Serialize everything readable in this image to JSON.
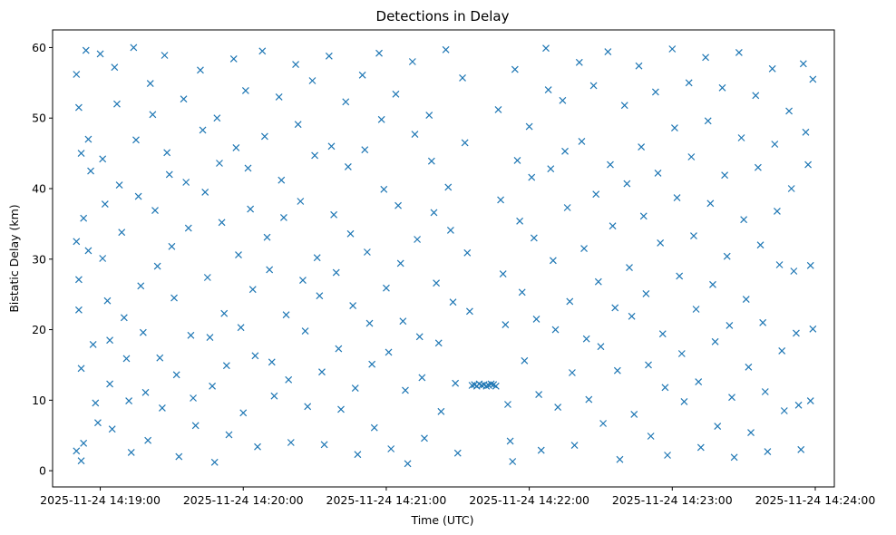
{
  "chart_data": {
    "type": "scatter",
    "title": "Detections in Delay",
    "xlabel": "Time (UTC)",
    "ylabel": "Bistatic Delay (km)",
    "marker": "x",
    "color": "#1f77b4",
    "grid": false,
    "x_type": "datetime",
    "xlim": [
      "2025-11-24 14:18:40",
      "2025-11-24 14:24:08"
    ],
    "ylim": [
      -2.3,
      62.5
    ],
    "x_ticks": [
      "2025-11-24 14:19:00",
      "2025-11-24 14:20:00",
      "2025-11-24 14:21:00",
      "2025-11-24 14:22:00",
      "2025-11-24 14:23:00",
      "2025-11-24 14:24:00"
    ],
    "y_ticks": [
      0,
      10,
      20,
      30,
      40,
      50,
      60
    ],
    "points": [
      [
        "14:18:50",
        56.2
      ],
      [
        "14:18:51",
        51.5
      ],
      [
        "14:18:52",
        45.0
      ],
      [
        "14:18:53",
        35.8
      ],
      [
        "14:18:50",
        32.5
      ],
      [
        "14:18:51",
        27.1
      ],
      [
        "14:18:51",
        22.8
      ],
      [
        "14:18:52",
        14.5
      ],
      [
        "14:18:50",
        2.8
      ],
      [
        "14:18:52",
        1.4
      ],
      [
        "14:18:53",
        3.9
      ],
      [
        "14:18:54",
        59.6
      ],
      [
        "14:18:55",
        47.0
      ],
      [
        "14:18:56",
        42.5
      ],
      [
        "14:18:55",
        31.2
      ],
      [
        "14:18:57",
        17.9
      ],
      [
        "14:18:58",
        9.6
      ],
      [
        "14:18:59",
        6.8
      ],
      [
        "14:19:00",
        59.1
      ],
      [
        "14:19:01",
        44.2
      ],
      [
        "14:19:02",
        37.8
      ],
      [
        "14:19:01",
        30.1
      ],
      [
        "14:19:03",
        24.1
      ],
      [
        "14:19:04",
        18.5
      ],
      [
        "14:19:04",
        12.3
      ],
      [
        "14:19:05",
        5.9
      ],
      [
        "14:19:06",
        57.2
      ],
      [
        "14:19:07",
        52.0
      ],
      [
        "14:19:08",
        40.5
      ],
      [
        "14:19:09",
        33.8
      ],
      [
        "14:19:10",
        21.7
      ],
      [
        "14:19:11",
        15.9
      ],
      [
        "14:19:12",
        9.9
      ],
      [
        "14:19:13",
        2.6
      ],
      [
        "14:19:14",
        60.0
      ],
      [
        "14:19:15",
        46.9
      ],
      [
        "14:19:16",
        38.9
      ],
      [
        "14:19:17",
        26.2
      ],
      [
        "14:19:18",
        19.6
      ],
      [
        "14:19:19",
        11.1
      ],
      [
        "14:19:20",
        4.3
      ],
      [
        "14:19:21",
        54.9
      ],
      [
        "14:19:22",
        50.5
      ],
      [
        "14:19:23",
        36.9
      ],
      [
        "14:19:24",
        29.0
      ],
      [
        "14:19:25",
        16.0
      ],
      [
        "14:19:26",
        8.9
      ],
      [
        "14:19:27",
        58.9
      ],
      [
        "14:19:28",
        45.1
      ],
      [
        "14:19:29",
        42.0
      ],
      [
        "14:19:30",
        31.8
      ],
      [
        "14:19:31",
        24.5
      ],
      [
        "14:19:32",
        13.6
      ],
      [
        "14:19:33",
        2.0
      ],
      [
        "14:19:35",
        52.7
      ],
      [
        "14:19:36",
        40.9
      ],
      [
        "14:19:37",
        34.4
      ],
      [
        "14:19:38",
        19.2
      ],
      [
        "14:19:39",
        10.3
      ],
      [
        "14:19:40",
        6.4
      ],
      [
        "14:19:42",
        56.8
      ],
      [
        "14:19:43",
        48.3
      ],
      [
        "14:19:44",
        39.5
      ],
      [
        "14:19:45",
        27.4
      ],
      [
        "14:19:46",
        18.9
      ],
      [
        "14:19:47",
        12.0
      ],
      [
        "14:19:48",
        1.2
      ],
      [
        "14:19:49",
        50.0
      ],
      [
        "14:19:50",
        43.6
      ],
      [
        "14:19:51",
        35.2
      ],
      [
        "14:19:52",
        22.3
      ],
      [
        "14:19:53",
        14.9
      ],
      [
        "14:19:54",
        5.1
      ],
      [
        "14:19:56",
        58.4
      ],
      [
        "14:19:57",
        45.8
      ],
      [
        "14:19:58",
        30.6
      ],
      [
        "14:19:59",
        20.3
      ],
      [
        "14:20:00",
        8.2
      ],
      [
        "14:20:01",
        53.9
      ],
      [
        "14:20:02",
        42.9
      ],
      [
        "14:20:03",
        37.1
      ],
      [
        "14:20:04",
        25.7
      ],
      [
        "14:20:05",
        16.3
      ],
      [
        "14:20:06",
        3.4
      ],
      [
        "14:20:08",
        59.5
      ],
      [
        "14:20:09",
        47.4
      ],
      [
        "14:20:10",
        33.1
      ],
      [
        "14:20:11",
        28.5
      ],
      [
        "14:20:12",
        15.4
      ],
      [
        "14:20:13",
        10.6
      ],
      [
        "14:20:15",
        53.0
      ],
      [
        "14:20:16",
        41.2
      ],
      [
        "14:20:17",
        35.9
      ],
      [
        "14:20:18",
        22.1
      ],
      [
        "14:20:19",
        12.9
      ],
      [
        "14:20:20",
        4.0
      ],
      [
        "14:20:22",
        57.6
      ],
      [
        "14:20:23",
        49.1
      ],
      [
        "14:20:24",
        38.2
      ],
      [
        "14:20:25",
        27.0
      ],
      [
        "14:20:26",
        19.8
      ],
      [
        "14:20:27",
        9.1
      ],
      [
        "14:20:29",
        55.3
      ],
      [
        "14:20:30",
        44.7
      ],
      [
        "14:20:31",
        30.2
      ],
      [
        "14:20:32",
        24.8
      ],
      [
        "14:20:33",
        14.0
      ],
      [
        "14:20:34",
        3.7
      ],
      [
        "14:20:36",
        58.8
      ],
      [
        "14:20:37",
        46.0
      ],
      [
        "14:20:38",
        36.3
      ],
      [
        "14:20:39",
        28.1
      ],
      [
        "14:20:40",
        17.3
      ],
      [
        "14:20:41",
        8.7
      ],
      [
        "14:20:43",
        52.3
      ],
      [
        "14:20:44",
        43.1
      ],
      [
        "14:20:45",
        33.6
      ],
      [
        "14:20:46",
        23.4
      ],
      [
        "14:20:47",
        11.7
      ],
      [
        "14:20:48",
        2.3
      ],
      [
        "14:20:50",
        56.1
      ],
      [
        "14:20:51",
        45.5
      ],
      [
        "14:20:52",
        31.0
      ],
      [
        "14:20:53",
        20.9
      ],
      [
        "14:20:54",
        15.1
      ],
      [
        "14:20:55",
        6.1
      ],
      [
        "14:20:57",
        59.2
      ],
      [
        "14:20:58",
        49.8
      ],
      [
        "14:20:59",
        39.9
      ],
      [
        "14:21:00",
        25.9
      ],
      [
        "14:21:01",
        16.8
      ],
      [
        "14:21:02",
        3.1
      ],
      [
        "14:21:04",
        53.4
      ],
      [
        "14:21:05",
        37.6
      ],
      [
        "14:21:06",
        29.4
      ],
      [
        "14:21:07",
        21.2
      ],
      [
        "14:21:08",
        11.4
      ],
      [
        "14:21:09",
        1.0
      ],
      [
        "14:21:11",
        58.0
      ],
      [
        "14:21:12",
        47.7
      ],
      [
        "14:21:13",
        32.8
      ],
      [
        "14:21:14",
        19.0
      ],
      [
        "14:21:15",
        13.2
      ],
      [
        "14:21:16",
        4.6
      ],
      [
        "14:21:18",
        50.4
      ],
      [
        "14:21:19",
        43.9
      ],
      [
        "14:21:20",
        36.6
      ],
      [
        "14:21:21",
        26.6
      ],
      [
        "14:21:22",
        18.1
      ],
      [
        "14:21:23",
        8.4
      ],
      [
        "14:21:25",
        59.7
      ],
      [
        "14:21:26",
        40.2
      ],
      [
        "14:21:27",
        34.1
      ],
      [
        "14:21:28",
        23.9
      ],
      [
        "14:21:29",
        12.4
      ],
      [
        "14:21:30",
        2.5
      ],
      [
        "14:21:32",
        55.7
      ],
      [
        "14:21:33",
        46.5
      ],
      [
        "14:21:34",
        30.9
      ],
      [
        "14:21:35",
        22.6
      ],
      [
        "14:21:36",
        12.1
      ],
      [
        "14:21:37",
        12.2
      ],
      [
        "14:21:38",
        12.0
      ],
      [
        "14:21:39",
        12.3
      ],
      [
        "14:21:40",
        12.1
      ],
      [
        "14:21:41",
        12.2
      ],
      [
        "14:21:42",
        12.0
      ],
      [
        "14:21:43",
        12.1
      ],
      [
        "14:21:44",
        12.3
      ],
      [
        "14:21:45",
        12.2
      ],
      [
        "14:21:46",
        12.0
      ],
      [
        "14:21:47",
        51.2
      ],
      [
        "14:21:48",
        38.4
      ],
      [
        "14:21:49",
        27.9
      ],
      [
        "14:21:50",
        20.7
      ],
      [
        "14:21:51",
        9.4
      ],
      [
        "14:21:52",
        4.2
      ],
      [
        "14:21:53",
        1.3
      ],
      [
        "14:21:54",
        56.9
      ],
      [
        "14:21:55",
        44.0
      ],
      [
        "14:21:56",
        35.4
      ],
      [
        "14:21:57",
        25.3
      ],
      [
        "14:21:58",
        15.6
      ],
      [
        "14:22:00",
        48.8
      ],
      [
        "14:22:01",
        41.6
      ],
      [
        "14:22:02",
        33.0
      ],
      [
        "14:22:03",
        21.5
      ],
      [
        "14:22:04",
        10.8
      ],
      [
        "14:22:05",
        2.9
      ],
      [
        "14:22:07",
        59.9
      ],
      [
        "14:22:08",
        54.0
      ],
      [
        "14:22:09",
        42.8
      ],
      [
        "14:22:10",
        29.8
      ],
      [
        "14:22:11",
        20.0
      ],
      [
        "14:22:12",
        9.0
      ],
      [
        "14:22:14",
        52.5
      ],
      [
        "14:22:15",
        45.3
      ],
      [
        "14:22:16",
        37.3
      ],
      [
        "14:22:17",
        24.0
      ],
      [
        "14:22:18",
        13.9
      ],
      [
        "14:22:19",
        3.6
      ],
      [
        "14:22:21",
        57.9
      ],
      [
        "14:22:22",
        46.7
      ],
      [
        "14:22:23",
        31.5
      ],
      [
        "14:22:24",
        18.7
      ],
      [
        "14:22:25",
        10.1
      ],
      [
        "14:22:27",
        54.6
      ],
      [
        "14:22:28",
        39.2
      ],
      [
        "14:22:29",
        26.8
      ],
      [
        "14:22:30",
        17.6
      ],
      [
        "14:22:31",
        6.7
      ],
      [
        "14:22:33",
        59.4
      ],
      [
        "14:22:34",
        43.4
      ],
      [
        "14:22:35",
        34.7
      ],
      [
        "14:22:36",
        23.1
      ],
      [
        "14:22:37",
        14.2
      ],
      [
        "14:22:38",
        1.6
      ],
      [
        "14:22:40",
        51.8
      ],
      [
        "14:22:41",
        40.7
      ],
      [
        "14:22:42",
        28.8
      ],
      [
        "14:22:43",
        21.9
      ],
      [
        "14:22:44",
        8.0
      ],
      [
        "14:22:46",
        57.4
      ],
      [
        "14:22:47",
        45.9
      ],
      [
        "14:22:48",
        36.1
      ],
      [
        "14:22:49",
        25.1
      ],
      [
        "14:22:50",
        15.0
      ],
      [
        "14:22:51",
        4.9
      ],
      [
        "14:22:53",
        53.7
      ],
      [
        "14:22:54",
        42.2
      ],
      [
        "14:22:55",
        32.3
      ],
      [
        "14:22:56",
        19.4
      ],
      [
        "14:22:57",
        11.8
      ],
      [
        "14:22:58",
        2.2
      ],
      [
        "14:23:00",
        59.8
      ],
      [
        "14:23:01",
        48.6
      ],
      [
        "14:23:02",
        38.7
      ],
      [
        "14:23:03",
        27.6
      ],
      [
        "14:23:04",
        16.6
      ],
      [
        "14:23:05",
        9.8
      ],
      [
        "14:23:07",
        55.0
      ],
      [
        "14:23:08",
        44.5
      ],
      [
        "14:23:09",
        33.3
      ],
      [
        "14:23:10",
        22.9
      ],
      [
        "14:23:11",
        12.6
      ],
      [
        "14:23:12",
        3.3
      ],
      [
        "14:23:14",
        58.6
      ],
      [
        "14:23:15",
        49.6
      ],
      [
        "14:23:16",
        37.9
      ],
      [
        "14:23:17",
        26.4
      ],
      [
        "14:23:18",
        18.3
      ],
      [
        "14:23:19",
        6.3
      ],
      [
        "14:23:21",
        54.3
      ],
      [
        "14:23:22",
        41.9
      ],
      [
        "14:23:23",
        30.4
      ],
      [
        "14:23:24",
        20.6
      ],
      [
        "14:23:25",
        10.4
      ],
      [
        "14:23:26",
        1.9
      ],
      [
        "14:23:28",
        59.3
      ],
      [
        "14:23:29",
        47.2
      ],
      [
        "14:23:30",
        35.6
      ],
      [
        "14:23:31",
        24.3
      ],
      [
        "14:23:32",
        14.7
      ],
      [
        "14:23:33",
        5.4
      ],
      [
        "14:23:35",
        53.2
      ],
      [
        "14:23:36",
        43.0
      ],
      [
        "14:23:37",
        32.0
      ],
      [
        "14:23:38",
        21.0
      ],
      [
        "14:23:39",
        11.2
      ],
      [
        "14:23:40",
        2.7
      ],
      [
        "14:23:42",
        57.0
      ],
      [
        "14:23:43",
        46.3
      ],
      [
        "14:23:44",
        36.8
      ],
      [
        "14:23:45",
        29.2
      ],
      [
        "14:23:46",
        17.0
      ],
      [
        "14:23:47",
        8.5
      ],
      [
        "14:23:49",
        51.0
      ],
      [
        "14:23:50",
        40.0
      ],
      [
        "14:23:51",
        28.3
      ],
      [
        "14:23:52",
        19.5
      ],
      [
        "14:23:53",
        9.3
      ],
      [
        "14:23:54",
        3.0
      ],
      [
        "14:23:55",
        57.7
      ],
      [
        "14:23:56",
        48.0
      ],
      [
        "14:23:57",
        43.4
      ],
      [
        "14:23:58",
        29.1
      ],
      [
        "14:23:59",
        20.1
      ],
      [
        "14:23:58",
        9.9
      ],
      [
        "14:23:59",
        55.5
      ]
    ]
  }
}
